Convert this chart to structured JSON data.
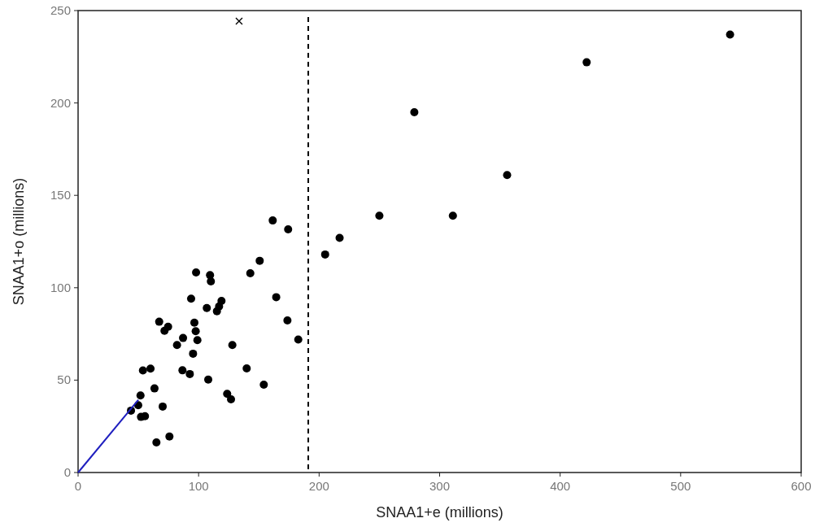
{
  "chart_data": {
    "type": "scatter",
    "xlabel": "SNAA1+e (millions)",
    "ylabel": "SNAA1+o (millions)",
    "xlim": [
      0,
      600
    ],
    "ylim": [
      0,
      250
    ],
    "xticks": [
      0,
      100,
      200,
      300,
      400,
      500,
      600
    ],
    "yticks": [
      0,
      50,
      100,
      150,
      200,
      250
    ],
    "grid": false,
    "series": [
      {
        "marker": "circle",
        "color": "#000000",
        "x": [
          97.9,
          109.5,
          110.2,
          93.8,
          119,
          106.8,
          115.2,
          117,
          67.3,
          74.7,
          71.7,
          96.5,
          97.6,
          99,
          87.1,
          82.1,
          95.4,
          128,
          139.9,
          86.6,
          92.7,
          108,
          123.7,
          126.9,
          154.1,
          53.8,
          60.1,
          63.4,
          51.8,
          49.9,
          43.9,
          52.2,
          55.5,
          70.2,
          65,
          75.8,
          142.9,
          150.7,
          161.5,
          174.3,
          164.4,
          173.7,
          182.7,
          205,
          217,
          250,
          279,
          311,
          356,
          422,
          541
        ],
        "values": [
          108.3,
          106.8,
          103.4,
          94.1,
          92.9,
          89,
          87.3,
          89.9,
          81.6,
          78.9,
          76.7,
          81.1,
          76.5,
          71.6,
          72.8,
          69,
          64.3,
          69,
          56.3,
          55.3,
          53.3,
          50.3,
          42.6,
          39.6,
          47.5,
          55.2,
          56.2,
          45.5,
          41.7,
          36.4,
          33.5,
          30.1,
          30.5,
          35.7,
          16.3,
          19.5,
          107.8,
          114.6,
          136.4,
          131.6,
          94.9,
          82.3,
          72,
          118,
          127,
          139,
          195,
          139,
          161,
          222,
          237
        ]
      },
      {
        "type": "scatter",
        "marker": "cross",
        "color": "#000000",
        "x": [
          133.6
        ],
        "values": [
          244.3
        ]
      },
      {
        "type": "line",
        "marker": "none",
        "color": "#1f1fbf",
        "x": [
          0,
          50
        ],
        "values": [
          0,
          39.3
        ]
      }
    ],
    "ref_lines": [
      {
        "axis": "x",
        "value": 191,
        "line_style": "dashed",
        "color": "#000000"
      }
    ]
  }
}
